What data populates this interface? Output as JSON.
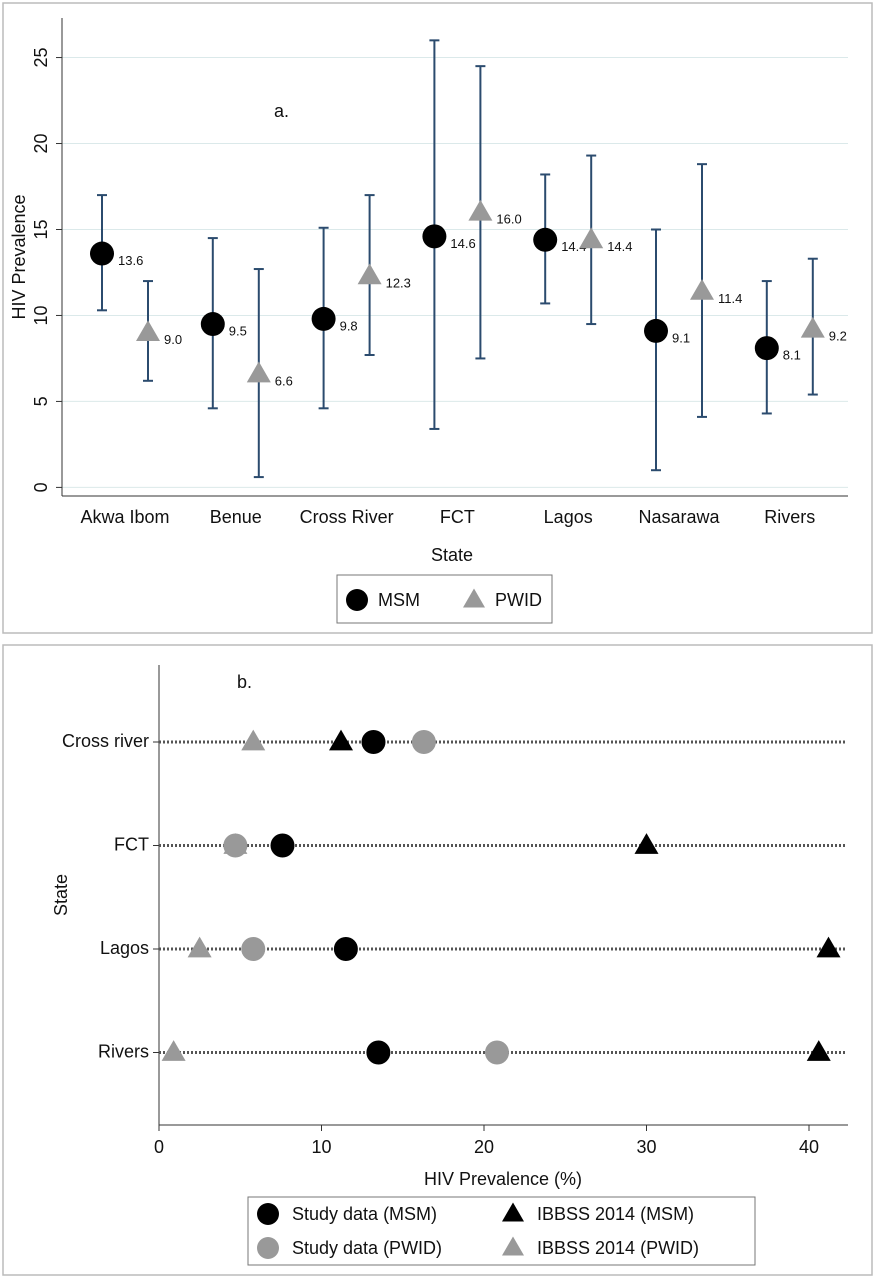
{
  "chart_data": [
    {
      "type": "errorbar",
      "annotation": "a.",
      "x_label": "State",
      "y_label": "HIV Prevalence",
      "categories": [
        "Akwa Ibom",
        "Benue",
        "Cross River",
        "FCT",
        "Lagos",
        "Nasarawa",
        "Rivers"
      ],
      "ylim": [
        -0.5,
        27.3
      ],
      "yticks": [
        0,
        5,
        10,
        15,
        20,
        25
      ],
      "grid": true,
      "legend": "bottom",
      "errorbar_color": "#2b4b6e",
      "series": [
        {
          "name": "MSM",
          "marker": "circle",
          "color": "#000000",
          "values": [
            13.6,
            9.5,
            9.8,
            14.6,
            14.4,
            9.1,
            8.1
          ],
          "value_labels": [
            "13.6",
            "9.5",
            "9.8",
            "14.6",
            "14.4",
            "9.1",
            "8.1"
          ],
          "lower": [
            10.3,
            4.6,
            4.6,
            3.4,
            10.7,
            1.0,
            4.3
          ],
          "upper": [
            17.0,
            14.5,
            15.1,
            26.0,
            18.2,
            15.0,
            12.0
          ]
        },
        {
          "name": "PWID",
          "marker": "triangle",
          "color": "#999999",
          "values": [
            9.0,
            6.6,
            12.3,
            16.0,
            14.4,
            11.4,
            9.2
          ],
          "value_labels": [
            "9.0",
            "6.6",
            "12.3",
            "16.0",
            "14.4",
            "11.4",
            "9.2"
          ],
          "lower": [
            6.2,
            0.6,
            7.7,
            7.5,
            9.5,
            4.1,
            5.4
          ],
          "upper": [
            12.0,
            12.7,
            17.0,
            24.5,
            19.3,
            18.8,
            13.3
          ]
        }
      ]
    },
    {
      "type": "dot",
      "annotation": "b.",
      "x_label": "HIV Prevalence (%)",
      "y_label": "State",
      "categories": [
        "Cross river",
        "FCT",
        "Lagos",
        "Rivers"
      ],
      "xlim": [
        0,
        42.4
      ],
      "xticks": [
        0,
        10,
        20,
        30,
        40
      ],
      "legend": "bottom",
      "series": [
        {
          "name": "Study data (MSM)",
          "marker": "circle",
          "color": "#000000",
          "values": [
            13.2,
            7.6,
            11.5,
            13.5
          ]
        },
        {
          "name": "IBBSS 2014 (MSM)",
          "marker": "triangle",
          "color": "#000000",
          "values": [
            11.2,
            30.0,
            41.2,
            40.6
          ]
        },
        {
          "name": "Study data (PWID)",
          "marker": "circle",
          "color": "#999999",
          "values": [
            16.3,
            4.7,
            5.8,
            20.8
          ]
        },
        {
          "name": "IBBSS 2014 (PWID)",
          "marker": "triangle",
          "color": "#999999",
          "values": [
            5.8,
            4.7,
            2.5,
            0.9
          ]
        }
      ]
    }
  ]
}
